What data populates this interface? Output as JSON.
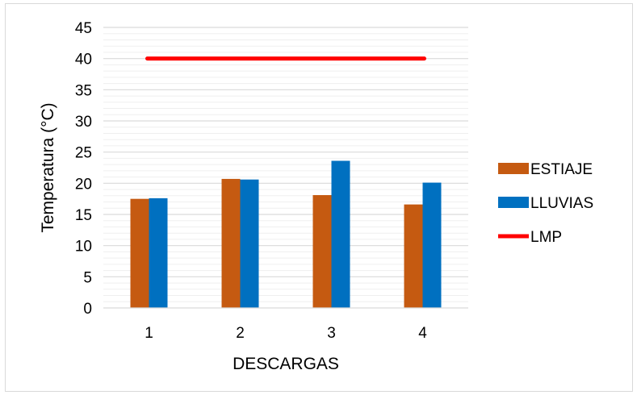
{
  "chart_data": {
    "type": "bar",
    "categories": [
      "1",
      "2",
      "3",
      "4"
    ],
    "series": [
      {
        "name": "ESTIAJE",
        "color": "#C55A11",
        "values": [
          17.5,
          20.7,
          18.1,
          16.6
        ]
      },
      {
        "name": "LLUVIAS",
        "color": "#0070C0",
        "values": [
          17.6,
          20.6,
          23.6,
          20.1
        ]
      }
    ],
    "reference_line": {
      "name": "LMP",
      "value": 40,
      "color": "#FF0000"
    },
    "title": "",
    "xlabel": "DESCARGAS",
    "ylabel": "Temperatura (°C)",
    "ylim": [
      0,
      45
    ],
    "yticks": [
      0,
      5,
      10,
      15,
      20,
      25,
      30,
      35,
      40,
      45
    ],
    "grid": true,
    "legend_position": "right"
  }
}
